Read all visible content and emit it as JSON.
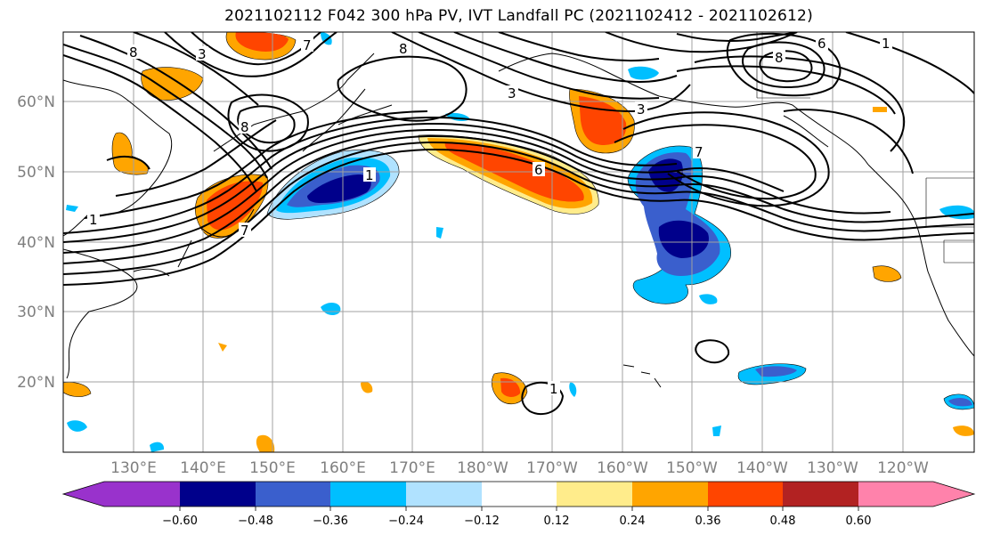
{
  "title": "2021102112 F042 300 hPa PV, IVT Landfall PC (2021102412 - 2021102612)",
  "lat_labels": [
    "60°N",
    "50°N",
    "40°N",
    "30°N",
    "20°N"
  ],
  "lon_labels": [
    "130°E",
    "140°E",
    "150°E",
    "160°E",
    "170°E",
    "180°W",
    "170°W",
    "160°W",
    "150°W",
    "140°W",
    "130°W",
    "120°W"
  ],
  "colorbar": {
    "labels": [
      "−0.60",
      "−0.48",
      "−0.36",
      "−0.24",
      "−0.12",
      "0.12",
      "0.24",
      "0.36",
      "0.48",
      "0.60"
    ],
    "colors": [
      "#9932cc",
      "#00008b",
      "#3a5fcd",
      "#00bfff",
      "#b0e2ff",
      "#ffffff",
      "#ffec8b",
      "#ffa500",
      "#ff4500",
      "#b22222",
      "#ff82ab"
    ]
  },
  "contour_labels": [
    "8",
    "1",
    "3",
    "8",
    "7",
    "1",
    "7",
    "8",
    "6",
    "3",
    "6",
    "8",
    "1",
    "3",
    "7",
    "1"
  ]
}
